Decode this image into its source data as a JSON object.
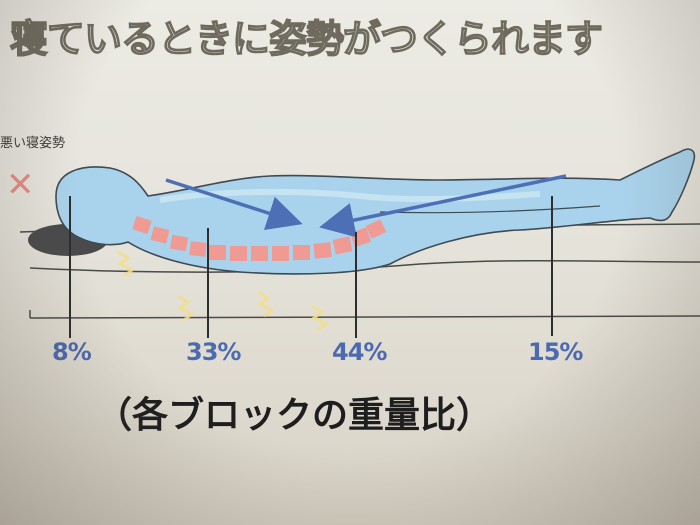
{
  "title": "寝ているときに姿勢がつくられます",
  "bad_posture_label": "悪い寝姿勢",
  "bad_mark": "✕",
  "weight_ratios": {
    "head": "8%",
    "torso": "33%",
    "hips": "44%",
    "legs": "15%"
  },
  "caption": "（各ブロックの重量比）",
  "colors": {
    "body_fill": "#a9d3ec",
    "spine_block": "#ef9a93",
    "arrow": "#4d6fb5",
    "percent_text": "#4c6ab0",
    "bad_mark": "#e98a84"
  }
}
